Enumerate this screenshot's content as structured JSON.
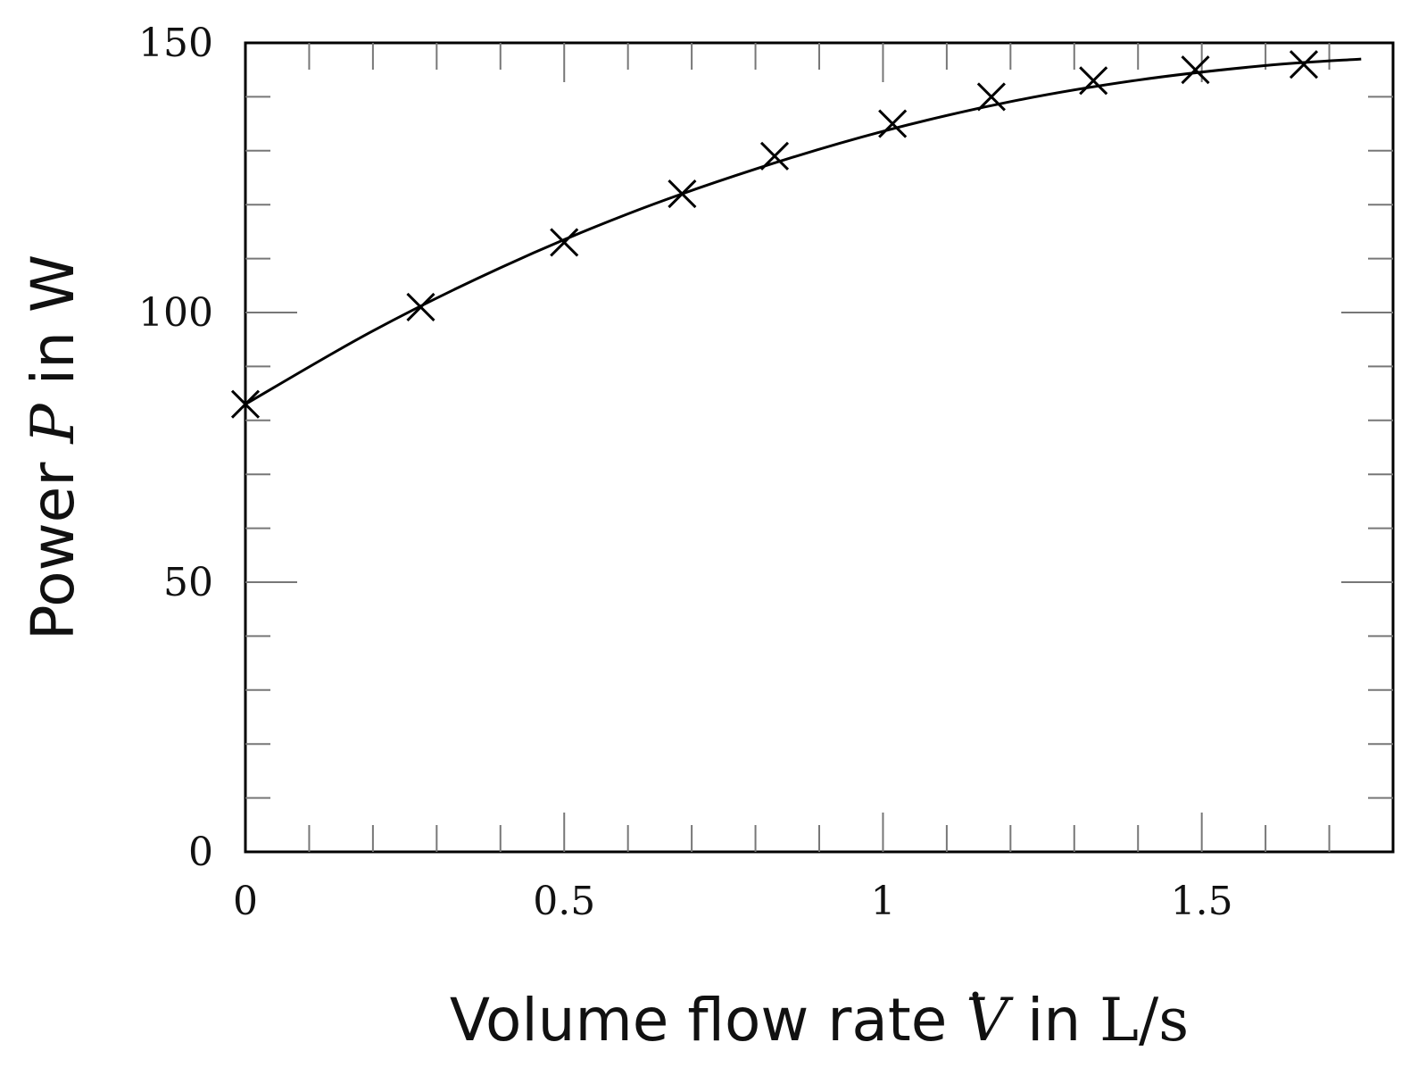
{
  "chart_data": {
    "type": "line",
    "x_title": {
      "prefix": "Volume flow rate ",
      "symbol": "V",
      "middle": " in ",
      "unit": "L/s"
    },
    "y_title": {
      "prefix": "Power ",
      "symbol": "P",
      "suffix": " in W"
    },
    "xlim": [
      0,
      1.8
    ],
    "ylim": [
      0,
      150
    ],
    "x_ticks": [
      0,
      0.5,
      1,
      1.5
    ],
    "x_tick_labels": [
      "0",
      "0.5",
      "1",
      "1.5"
    ],
    "y_ticks": [
      0,
      50,
      100,
      150
    ],
    "y_tick_labels": [
      "0",
      "50",
      "100",
      "150"
    ],
    "x_minor_step": 0.1,
    "y_minor_step": 10,
    "grid": false,
    "series": [
      {
        "marker": "x",
        "x": [
          0.0,
          0.275,
          0.5,
          0.685,
          0.83,
          1.015,
          1.17,
          1.33,
          1.49,
          1.66
        ],
        "y": [
          83,
          101,
          113,
          122,
          129,
          135,
          140,
          143,
          145,
          146
        ]
      },
      {
        "line": "solid",
        "x": [
          0.0,
          0.2,
          0.4,
          0.6,
          0.8,
          1.0,
          1.2,
          1.4,
          1.6,
          1.75
        ],
        "y": [
          83,
          96.6,
          108.3,
          118.3,
          126.6,
          133.6,
          139.1,
          143.1,
          145.8,
          147
        ]
      }
    ]
  }
}
